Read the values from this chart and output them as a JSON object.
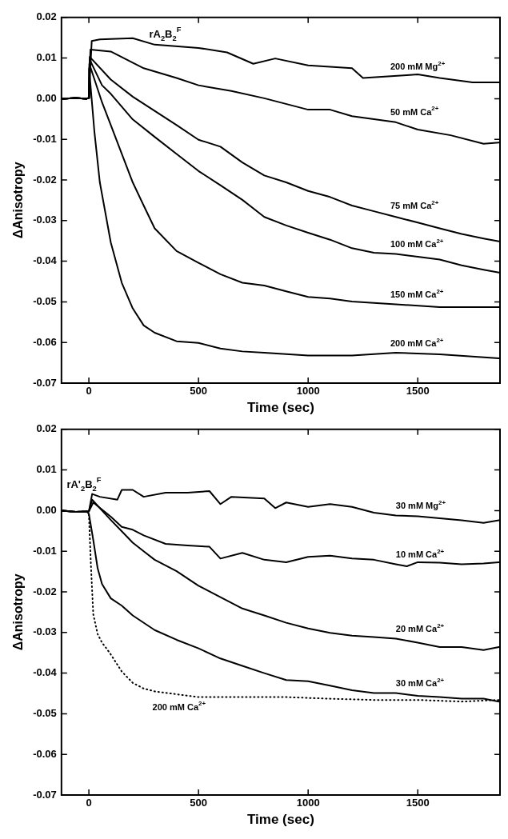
{
  "chart_data": [
    {
      "type": "line",
      "xlabel": "Time (sec)",
      "ylabel": "ΔAnisotropy",
      "xlim": [
        -125,
        1875
      ],
      "ylim": [
        -0.07,
        0.02
      ],
      "xticks": [
        0,
        500,
        1000,
        1500
      ],
      "yticks": [
        -0.07,
        -0.06,
        -0.05,
        -0.04,
        -0.03,
        -0.02,
        -0.01,
        {
          "value": 0,
          "label": "0.00"
        },
        0.01,
        0.02
      ],
      "grid": false,
      "annotations": [
        "rA$_{2}$B$_{2}$$^{F}$"
      ],
      "series": [
        {
          "name": "200 mM Mg$^{2+}$",
          "color": "#000000",
          "x": [
            -120,
            -60,
            -10,
            0,
            13,
            50,
            200,
            300,
            500,
            630,
            750,
            850,
            1000,
            1200,
            1250,
            1450,
            1500,
            1600,
            1750,
            1870
          ],
          "values": [
            0,
            0.0002,
            0,
            0.0002,
            0.0142,
            0.0146,
            0.0149,
            0.0133,
            0.0125,
            0.0114,
            0.0086,
            0.0099,
            0.0082,
            0.0075,
            0.0051,
            0.0058,
            0.006,
            0.0051,
            0.004,
            0.004
          ]
        },
        {
          "name": "50 mM Ca$^{2+}$",
          "color": "#000000",
          "x": [
            -120,
            -60,
            -10,
            0,
            7,
            100,
            250,
            400,
            500,
            650,
            800,
            1000,
            1100,
            1200,
            1400,
            1500,
            1650,
            1800,
            1870
          ],
          "values": [
            0,
            0.0002,
            0,
            0.0002,
            0.0121,
            0.0116,
            0.0075,
            0.0051,
            0.0033,
            0.0019,
            0.0001,
            -0.0027,
            -0.0027,
            -0.0043,
            -0.0058,
            -0.0076,
            -0.009,
            -0.0111,
            -0.0108
          ]
        },
        {
          "name": "75 mM Ca$^{2+}$",
          "color": "#000000",
          "x": [
            -120,
            -60,
            -10,
            0,
            4,
            100,
            200,
            300,
            400,
            500,
            600,
            700,
            800,
            900,
            1000,
            1100,
            1200,
            1300,
            1400,
            1500,
            1600,
            1700,
            1800,
            1870
          ],
          "values": [
            0,
            0.0002,
            0,
            0.0002,
            0.0103,
            0.0047,
            0.0005,
            -0.003,
            -0.0065,
            -0.0101,
            -0.0118,
            -0.0157,
            -0.0189,
            -0.0206,
            -0.0227,
            -0.0242,
            -0.0263,
            -0.0277,
            -0.0291,
            -0.0305,
            -0.0319,
            -0.0333,
            -0.0344,
            -0.0351
          ]
        },
        {
          "name": "100 mM Ca$^{2+}$",
          "color": "#000000",
          "x": [
            -120,
            -60,
            -10,
            0,
            4,
            60,
            100,
            200,
            300,
            400,
            500,
            600,
            700,
            800,
            900,
            1000,
            1100,
            1200,
            1300,
            1400,
            1500,
            1600,
            1700,
            1800,
            1870
          ],
          "values": [
            0,
            0.0002,
            0,
            0.0002,
            0.0096,
            0.0033,
            0.0012,
            -0.0051,
            -0.0094,
            -0.0136,
            -0.0178,
            -0.0213,
            -0.0249,
            -0.0291,
            -0.0312,
            -0.033,
            -0.0347,
            -0.0368,
            -0.0379,
            -0.0382,
            -0.0389,
            -0.0396,
            -0.041,
            -0.0421,
            -0.0428
          ]
        },
        {
          "name": "150 mM Ca$^{2+}$",
          "color": "#000000",
          "x": [
            -120,
            -60,
            -10,
            0,
            2,
            60,
            100,
            200,
            250,
            300,
            400,
            500,
            600,
            700,
            800,
            900,
            1000,
            1100,
            1200,
            1400,
            1600,
            1870
          ],
          "values": [
            0,
            0.0002,
            0,
            0.0002,
            0.0086,
            -0.0009,
            -0.0065,
            -0.0206,
            -0.0263,
            -0.0319,
            -0.0375,
            -0.0404,
            -0.0432,
            -0.0453,
            -0.046,
            -0.0474,
            -0.0488,
            -0.0492,
            -0.0499,
            -0.0506,
            -0.0513,
            -0.0513
          ]
        },
        {
          "name": "200 mM Ca$^{2+}$",
          "color": "#000000",
          "x": [
            -120,
            -60,
            -10,
            0,
            1,
            25,
            50,
            100,
            150,
            200,
            250,
            300,
            400,
            500,
            600,
            700,
            800,
            1000,
            1200,
            1400,
            1600,
            1870
          ],
          "values": [
            0,
            0.0002,
            0,
            0.0002,
            0.0075,
            -0.008,
            -0.0206,
            -0.0354,
            -0.0453,
            -0.0516,
            -0.0558,
            -0.0576,
            -0.0597,
            -0.0601,
            -0.0615,
            -0.0622,
            -0.0625,
            -0.0632,
            -0.0632,
            -0.0625,
            -0.0629,
            -0.0639
          ]
        }
      ]
    },
    {
      "type": "line",
      "xlabel": "Time (sec)",
      "ylabel": "ΔAnisotropy",
      "xlim": [
        -125,
        1875
      ],
      "ylim": [
        -0.07,
        0.02
      ],
      "xticks": [
        0,
        500,
        1000,
        1500
      ],
      "yticks": [
        -0.07,
        -0.06,
        -0.05,
        -0.04,
        -0.03,
        -0.02,
        -0.01,
        {
          "value": 0,
          "label": "0.00"
        },
        0.01,
        0.02
      ],
      "grid": false,
      "annotations": [
        "rA'$_{2}$B$_{2}$$^{F}$"
      ],
      "series": [
        {
          "name": "30 mM Mg$^{2+}$",
          "color": "#000000",
          "x": [
            -120,
            -60,
            -10,
            0,
            15,
            50,
            130,
            150,
            200,
            250,
            350,
            450,
            550,
            600,
            650,
            800,
            850,
            900,
            1000,
            1100,
            1200,
            1300,
            1400,
            1500,
            1600,
            1700,
            1800,
            1870
          ],
          "values": [
            0,
            -0.0003,
            -0.0002,
            -0.0002,
            0.0041,
            0.0034,
            0.0027,
            0.0051,
            0.0051,
            0.0034,
            0.0044,
            0.0044,
            0.0048,
            0.0016,
            0.0034,
            0.003,
            0.0006,
            0.002,
            0.0009,
            0.0016,
            0.0009,
            -0.0005,
            -0.0012,
            -0.0014,
            -0.0019,
            -0.0024,
            -0.003,
            -0.0024
          ]
        },
        {
          "name": "10 mM Ca$^{2+}$",
          "color": "#000000",
          "x": [
            -120,
            -60,
            -10,
            0,
            20,
            100,
            150,
            200,
            250,
            350,
            450,
            550,
            600,
            700,
            800,
            900,
            1000,
            1100,
            1200,
            1300,
            1400,
            1450,
            1500,
            1600,
            1700,
            1800,
            1870
          ],
          "values": [
            0,
            -0.0003,
            -0.0002,
            -0.0002,
            0.002,
            -0.0015,
            -0.004,
            -0.0047,
            -0.0061,
            -0.0082,
            -0.0086,
            -0.0089,
            -0.0118,
            -0.0104,
            -0.0121,
            -0.0127,
            -0.0114,
            -0.0111,
            -0.0118,
            -0.0121,
            -0.0132,
            -0.0137,
            -0.0127,
            -0.0128,
            -0.0132,
            -0.013,
            -0.0127
          ]
        },
        {
          "name": "20 mM Ca$^{2+}$",
          "color": "#000000",
          "x": [
            -120,
            -60,
            -10,
            0,
            15,
            50,
            100,
            150,
            200,
            250,
            300,
            400,
            500,
            600,
            700,
            800,
            900,
            1000,
            1100,
            1200,
            1300,
            1400,
            1500,
            1600,
            1700,
            1800,
            1870
          ],
          "values": [
            0,
            -0.0003,
            -0.0002,
            -0.0002,
            0.0027,
            0.0006,
            -0.0023,
            -0.0051,
            -0.0079,
            -0.01,
            -0.0121,
            -0.0149,
            -0.0185,
            -0.0213,
            -0.0241,
            -0.0258,
            -0.0276,
            -0.029,
            -0.0301,
            -0.0308,
            -0.0311,
            -0.0315,
            -0.0325,
            -0.0336,
            -0.0336,
            -0.0343,
            -0.0336
          ]
        },
        {
          "name": "30 mM Ca$^{2+}$",
          "color": "#000000",
          "x": [
            -120,
            -60,
            -10,
            0,
            20,
            40,
            60,
            100,
            150,
            200,
            300,
            400,
            500,
            600,
            700,
            800,
            900,
            1000,
            1100,
            1200,
            1300,
            1400,
            1500,
            1600,
            1700,
            1800,
            1870
          ],
          "values": [
            0,
            -0.0003,
            -0.0002,
            -0.0008,
            -0.0072,
            -0.0142,
            -0.0181,
            -0.0216,
            -0.0234,
            -0.0258,
            -0.0294,
            -0.0318,
            -0.0339,
            -0.0364,
            -0.0382,
            -0.04,
            -0.0417,
            -0.042,
            -0.0431,
            -0.0442,
            -0.0449,
            -0.0449,
            -0.0456,
            -0.0459,
            -0.0463,
            -0.0463,
            -0.047
          ]
        },
        {
          "name": "200 mM Ca$^{2+}$",
          "color": "#000000",
          "line_style": "dotted",
          "x": [
            -120,
            -60,
            -10,
            0,
            10,
            20,
            40,
            60,
            80,
            100,
            150,
            200,
            250,
            300,
            400,
            500,
            700,
            900,
            1100,
            1300,
            1500,
            1700,
            1870
          ],
          "values": [
            0,
            -0.0003,
            -0.0002,
            -0.0008,
            -0.0142,
            -0.0255,
            -0.0304,
            -0.0325,
            -0.0339,
            -0.0354,
            -0.0396,
            -0.0424,
            -0.0438,
            -0.0445,
            -0.0452,
            -0.0459,
            -0.0459,
            -0.0459,
            -0.0463,
            -0.0466,
            -0.0466,
            -0.047,
            -0.0466
          ]
        }
      ]
    }
  ]
}
